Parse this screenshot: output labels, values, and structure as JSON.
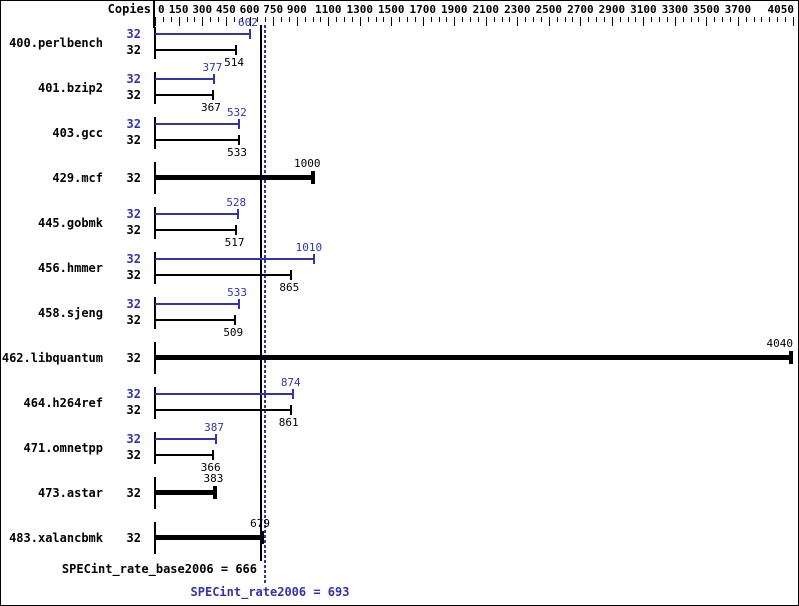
{
  "chart_data": {
    "type": "bar",
    "orientation": "horizontal",
    "copies_header": "Copies",
    "x_axis": {
      "min": 0,
      "max": 4050,
      "minor_tick_interval": 50,
      "labeled_ticks": [
        0,
        150,
        300,
        450,
        600,
        750,
        900,
        1100,
        1300,
        1500,
        1700,
        1900,
        2100,
        2300,
        2500,
        2700,
        2900,
        3100,
        3300,
        3500,
        3700,
        4050
      ]
    },
    "series_colors": {
      "peak": "#3232b4",
      "base": "#000000",
      "background": "#ffffff"
    },
    "legend_note": "top bar of each pair = peak (blue), bottom bar = base (black); single thick bar = identical/only result",
    "benchmarks": [
      {
        "name": "400.perlbench",
        "copies": "32",
        "peak": 602,
        "base": 514
      },
      {
        "name": "401.bzip2",
        "copies": "32",
        "peak": 377,
        "base": 367
      },
      {
        "name": "403.gcc",
        "copies": "32",
        "peak": 532,
        "base": 533
      },
      {
        "name": "429.mcf",
        "copies": "32",
        "single": 1000
      },
      {
        "name": "445.gobmk",
        "copies": "32",
        "peak": 528,
        "base": 517
      },
      {
        "name": "456.hmmer",
        "copies": "32",
        "peak": 1010,
        "base": 865
      },
      {
        "name": "458.sjeng",
        "copies": "32",
        "peak": 533,
        "base": 509
      },
      {
        "name": "462.libquantum",
        "copies": "32",
        "single": 4040
      },
      {
        "name": "464.h264ref",
        "copies": "32",
        "peak": 874,
        "base": 861
      },
      {
        "name": "471.omnetpp",
        "copies": "32",
        "peak": 387,
        "base": 366
      },
      {
        "name": "473.astar",
        "copies": "32",
        "single": 383
      },
      {
        "name": "483.xalancbmk",
        "copies": "32",
        "single": 679
      }
    ],
    "reference_lines": [
      {
        "name": "base",
        "label": "SPECint_rate_base2006",
        "value": 666,
        "style": "solid",
        "color": "#000000"
      },
      {
        "name": "peak",
        "label": "SPECint_rate2006",
        "value": 693,
        "style": "dotted",
        "color": "#3232b4"
      }
    ]
  }
}
